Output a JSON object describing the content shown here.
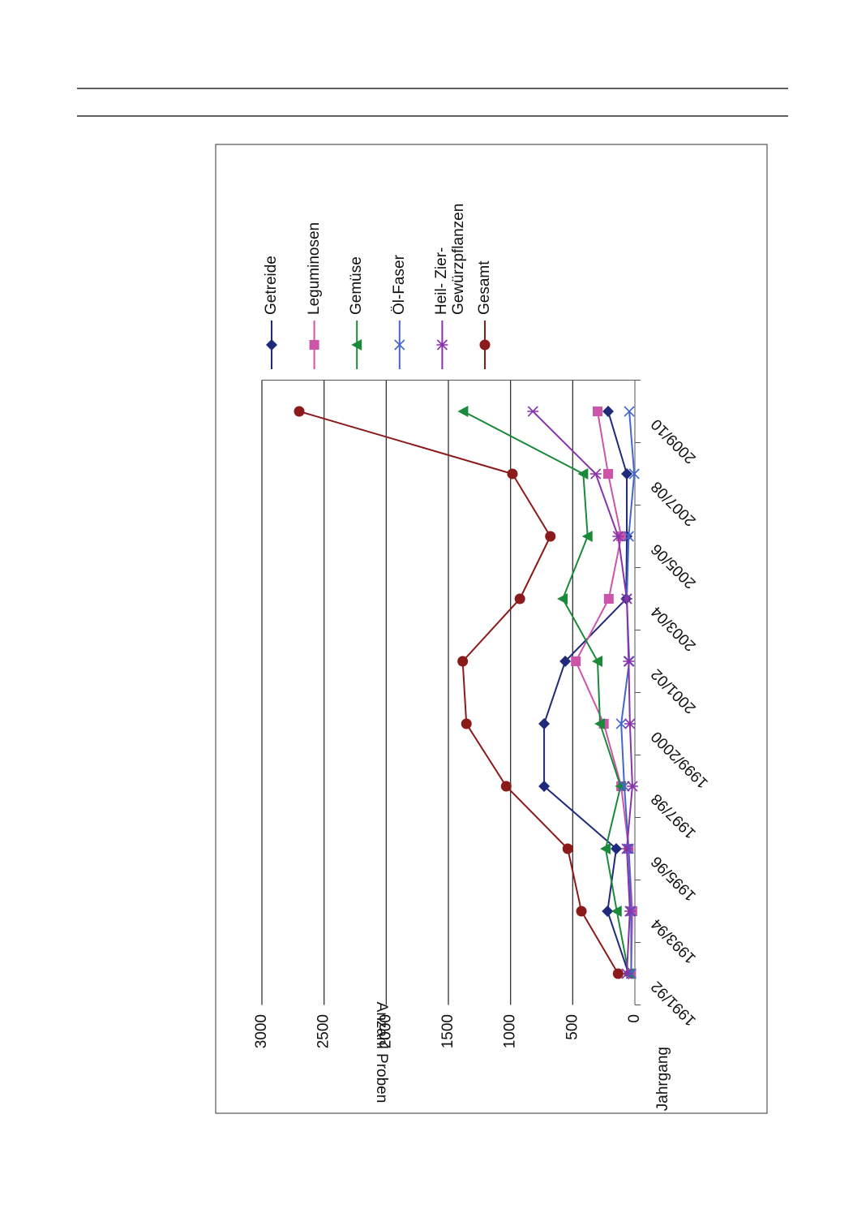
{
  "chart_data": {
    "type": "line",
    "y_label": "Anzahl Proben",
    "x_label": "Jahrgang",
    "categories": [
      "1991/92",
      "1993/94",
      "1995/96",
      "1997/98",
      "1999/2000",
      "2001/02",
      "2003/04",
      "2005/06",
      "2007/08",
      "2009/10"
    ],
    "ylim": [
      0,
      3000
    ],
    "yticks": [
      0,
      500,
      1000,
      1500,
      2000,
      2500,
      3000
    ],
    "grid": true,
    "legend": "right",
    "series": [
      {
        "name": "Getreide",
        "color": "#1f2a7a",
        "marker": "diamond",
        "values": [
          50,
          220,
          150,
          730,
          730,
          560,
          70,
          65,
          65,
          215
        ]
      },
      {
        "name": "Leguminosen",
        "color": "#cc55aa",
        "marker": "square",
        "values": [
          30,
          20,
          50,
          110,
          250,
          475,
          210,
          110,
          215,
          300
        ]
      },
      {
        "name": "Gemüse",
        "color": "#1a8a3a",
        "marker": "triangle",
        "values": [
          50,
          145,
          235,
          115,
          280,
          300,
          580,
          380,
          415,
          1380
        ]
      },
      {
        "name": "Öl-Faser",
        "color": "#4466cc",
        "marker": "x",
        "values": [
          30,
          30,
          50,
          85,
          110,
          45,
          65,
          50,
          5,
          45
        ]
      },
      {
        "name": "Heil- Zier- Gewürzpflanzen",
        "color": "#8833aa",
        "marker": "asterisk",
        "values": [
          65,
          40,
          65,
          20,
          40,
          50,
          65,
          135,
          315,
          820
        ]
      },
      {
        "name": "Gesamt",
        "color": "#8b1a1a",
        "marker": "circle",
        "values": [
          135,
          430,
          540,
          1035,
          1355,
          1385,
          925,
          680,
          985,
          2700
        ]
      }
    ]
  }
}
